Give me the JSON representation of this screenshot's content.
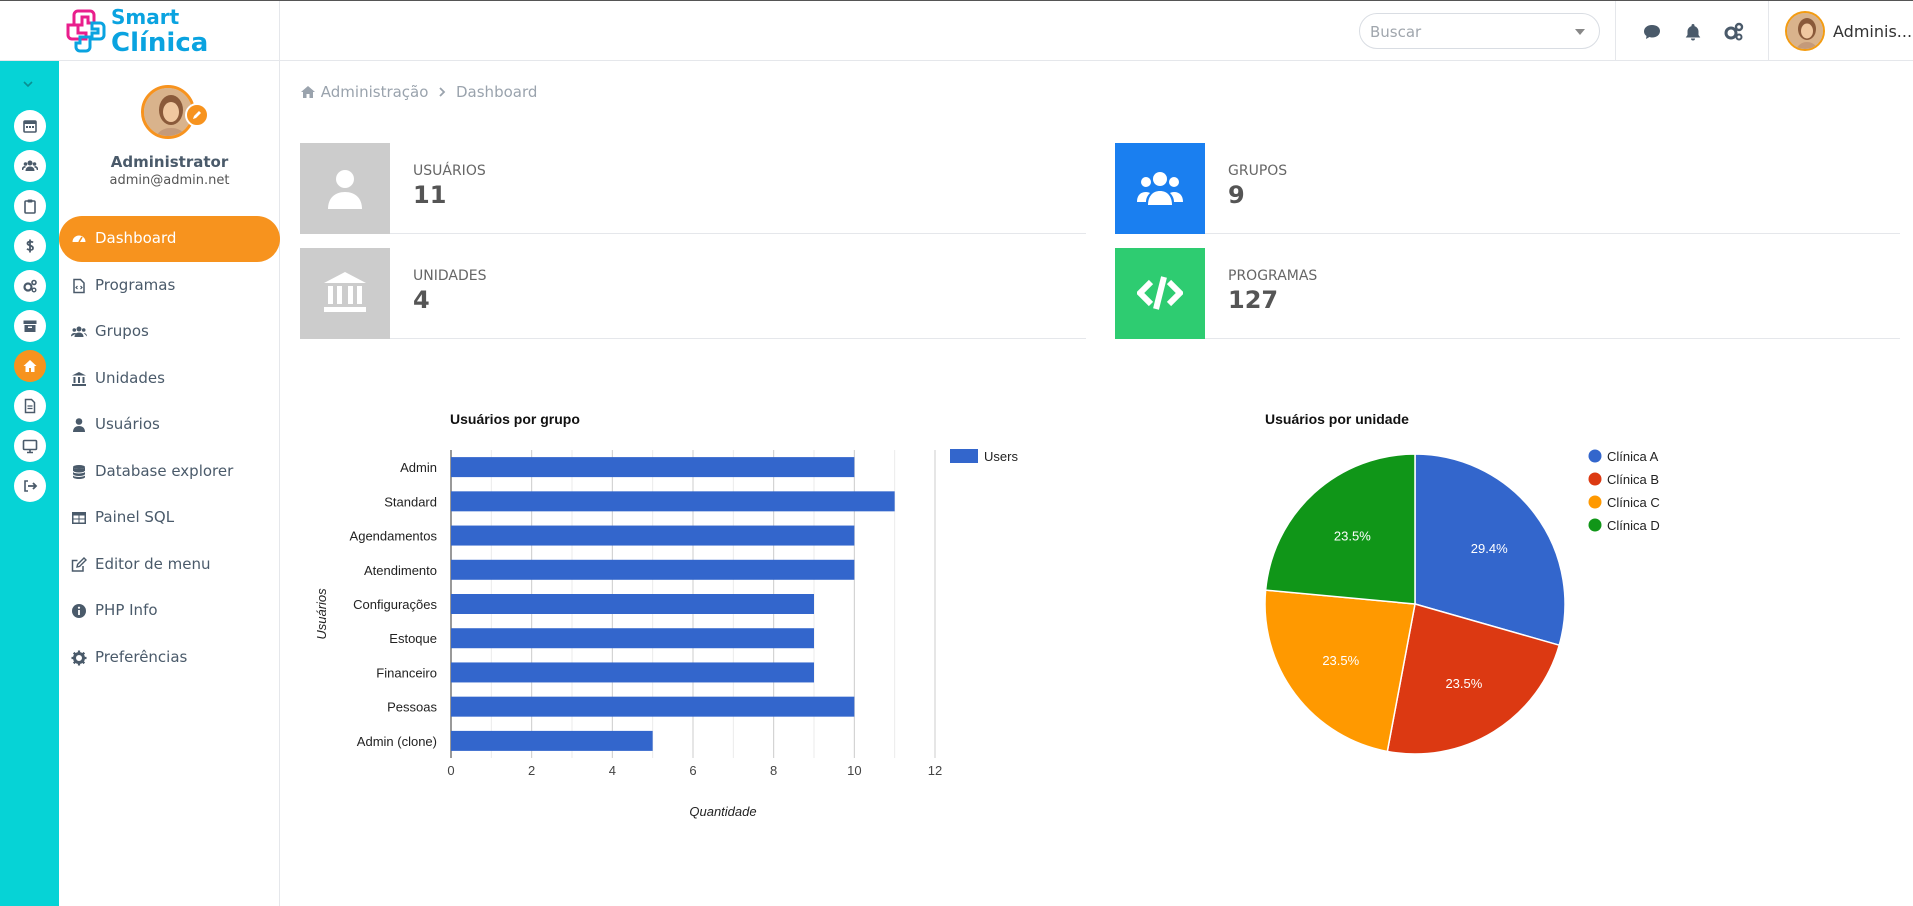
{
  "brand": {
    "line1": "Smart",
    "line2": "Clínica"
  },
  "search": {
    "placeholder": "Buscar"
  },
  "topbar": {
    "user_name": "Adminis..."
  },
  "profile": {
    "name": "Administrator",
    "email": "admin@admin.net"
  },
  "menu": [
    {
      "label": "Dashboard",
      "icon": "dashboard-icon"
    },
    {
      "label": "Programas",
      "icon": "file-code-icon"
    },
    {
      "label": "Grupos",
      "icon": "users-icon"
    },
    {
      "label": "Unidades",
      "icon": "bank-icon"
    },
    {
      "label": "Usuários",
      "icon": "user-icon"
    },
    {
      "label": "Database explorer",
      "icon": "database-icon"
    },
    {
      "label": "Painel SQL",
      "icon": "table-icon"
    },
    {
      "label": "Editor de menu",
      "icon": "edit-icon"
    },
    {
      "label": "PHP Info",
      "icon": "info-icon"
    },
    {
      "label": "Preferências",
      "icon": "gear-icon"
    }
  ],
  "rail_icons": [
    "calendar-icon",
    "users-icon",
    "clipboard-icon",
    "dollar-icon",
    "cogs-icon",
    "archive-icon",
    "home-icon",
    "file-icon",
    "monitor-icon",
    "logout-icon"
  ],
  "breadcrumb": {
    "root": "Administração",
    "current": "Dashboard"
  },
  "stats": {
    "usuarios": {
      "label": "USUÁRIOS",
      "value": "11",
      "color": "#cccccc"
    },
    "grupos": {
      "label": "GRUPOS",
      "value": "9",
      "color": "#1a7ff0"
    },
    "unidades": {
      "label": "UNIDADES",
      "value": "4",
      "color": "#cccccc"
    },
    "programas": {
      "label": "PROGRAMAS",
      "value": "127",
      "color": "#2ecc71"
    }
  },
  "chart_data": [
    {
      "type": "bar",
      "title": "Usuários por grupo",
      "xlabel": "Quantidade",
      "ylabel": "Usuários",
      "orientation": "horizontal",
      "categories": [
        "Admin",
        "Standard",
        "Agendamentos",
        "Atendimento",
        "Configurações",
        "Estoque",
        "Financeiro",
        "Pessoas",
        "Admin (clone)"
      ],
      "series": [
        {
          "name": "Users",
          "values": [
            10,
            11,
            10,
            10,
            9,
            9,
            9,
            10,
            5
          ],
          "color": "#3366cc"
        }
      ],
      "xlim": [
        0,
        12
      ],
      "xticks": [
        0,
        2,
        4,
        6,
        8,
        10,
        12
      ],
      "legend": "right",
      "grid": true
    },
    {
      "type": "pie",
      "title": "Usuários por unidade",
      "labels": [
        "Clínica A",
        "Clínica B",
        "Clínica C",
        "Clínica D"
      ],
      "values": [
        29.4,
        23.5,
        23.5,
        23.5
      ],
      "value_labels": [
        "29.4%",
        "23.5%",
        "23.5%",
        "23.5%"
      ],
      "colors": [
        "#3366cc",
        "#dc3912",
        "#ff9900",
        "#109618"
      ],
      "legend": "right"
    }
  ]
}
